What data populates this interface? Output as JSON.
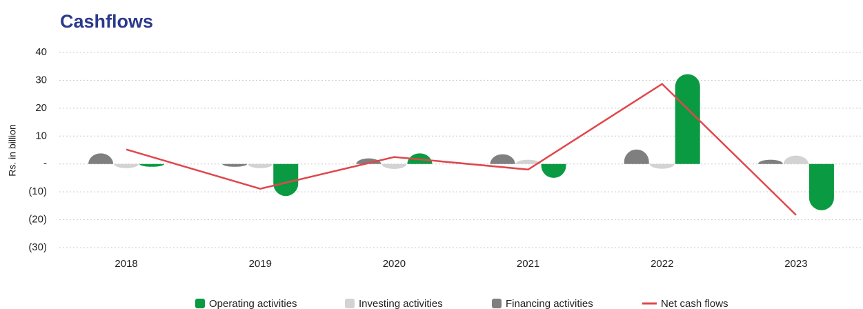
{
  "chart_data": {
    "type": "bar",
    "title": "Cashflows",
    "y_label": "Rs. in billion",
    "categories": [
      "2018",
      "2019",
      "2020",
      "2021",
      "2022",
      "2023"
    ],
    "series": [
      {
        "name": "Operating activities",
        "color": "#0a9a41",
        "values": [
          -1.0,
          -11.5,
          3.8,
          -5.0,
          32.2,
          -16.6
        ]
      },
      {
        "name": "Investing activities",
        "color": "#d3d3d3",
        "values": [
          -1.5,
          -1.5,
          -1.8,
          1.5,
          -1.7,
          3.0
        ]
      },
      {
        "name": "Financing activities",
        "color": "#7f7f7f",
        "values": [
          3.8,
          -1.0,
          2.0,
          3.5,
          5.2,
          1.5
        ]
      },
      {
        "name": "Net cash flows",
        "color": "#e0474c",
        "type": "line",
        "values": [
          5.2,
          -8.9,
          2.5,
          -2.0,
          28.7,
          -18.3
        ]
      }
    ],
    "ylim": [
      -30,
      40
    ],
    "yticks": [
      {
        "value": -30,
        "label": "(30)"
      },
      {
        "value": -20,
        "label": "(20)"
      },
      {
        "value": -10,
        "label": "(10)"
      },
      {
        "value": 0,
        "label": "-"
      },
      10,
      20,
      30,
      40
    ],
    "grid": true,
    "legend": "bottom"
  }
}
